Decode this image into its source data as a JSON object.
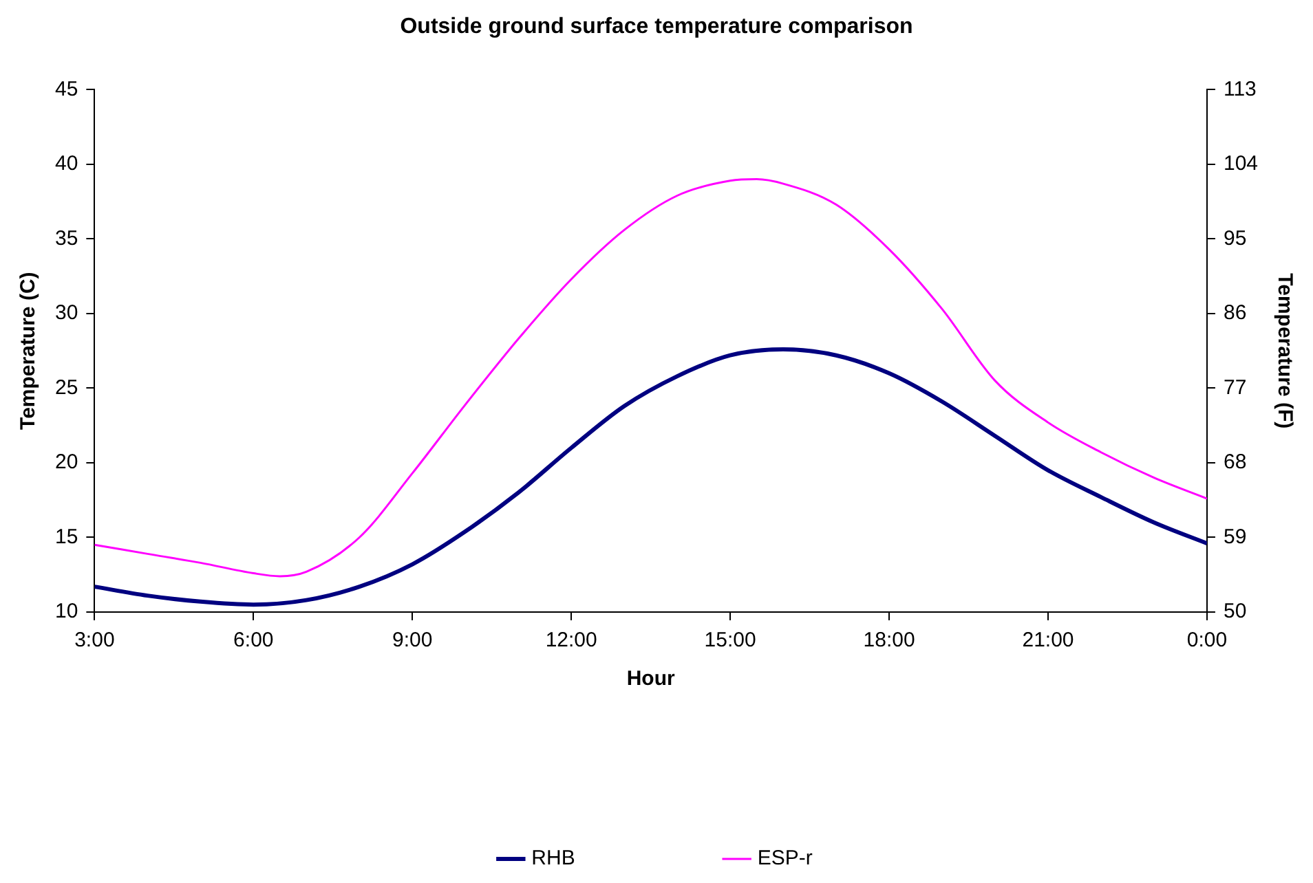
{
  "chart_data": {
    "type": "line",
    "title": "Outside ground surface temperature comparison",
    "xlabel": "Hour",
    "ylabel": "Temperature (C)",
    "y2label": "Temperature (F)",
    "xlim": [
      3,
      24
    ],
    "xticks": [
      {
        "value": 3,
        "label": "3:00"
      },
      {
        "value": 6,
        "label": "6:00"
      },
      {
        "value": 9,
        "label": "9:00"
      },
      {
        "value": 12,
        "label": "12:00"
      },
      {
        "value": 15,
        "label": "15:00"
      },
      {
        "value": 18,
        "label": "18:00"
      },
      {
        "value": 21,
        "label": "21:00"
      },
      {
        "value": 24,
        "label": "0:00"
      }
    ],
    "ylim": [
      10,
      45
    ],
    "yticks": [
      10,
      15,
      20,
      25,
      30,
      35,
      40,
      45
    ],
    "y2lim": [
      50,
      113
    ],
    "y2ticks": [
      50,
      59,
      68,
      77,
      86,
      95,
      104,
      113
    ],
    "grid": false,
    "legend": "bottom",
    "marker": "none",
    "series": [
      {
        "name": "RHB",
        "color": "#000080",
        "x": [
          3,
          4,
          5,
          6,
          7,
          8,
          9,
          10,
          11,
          12,
          13,
          14,
          15,
          16,
          17,
          18,
          19,
          20,
          21,
          22,
          23,
          24
        ],
        "values": [
          11.7,
          11.1,
          10.7,
          10.5,
          10.8,
          11.7,
          13.2,
          15.4,
          18.0,
          21.0,
          23.8,
          25.8,
          27.2,
          27.6,
          27.2,
          26.0,
          24.1,
          21.8,
          19.5,
          17.7,
          16.0,
          14.6
        ]
      },
      {
        "name": "ESP-r",
        "color": "#ff00ff",
        "x": [
          3,
          4,
          5,
          6,
          6.5,
          7,
          8,
          9,
          10,
          11,
          12,
          13,
          14,
          15,
          15.5,
          16,
          17,
          18,
          19,
          20,
          21,
          22,
          23,
          24
        ],
        "values": [
          14.5,
          13.9,
          13.3,
          12.6,
          12.4,
          12.7,
          15.0,
          19.3,
          23.9,
          28.3,
          32.3,
          35.6,
          37.9,
          38.9,
          39.0,
          38.7,
          37.3,
          34.3,
          30.3,
          25.5,
          22.7,
          20.7,
          19.0,
          17.6
        ]
      }
    ]
  }
}
